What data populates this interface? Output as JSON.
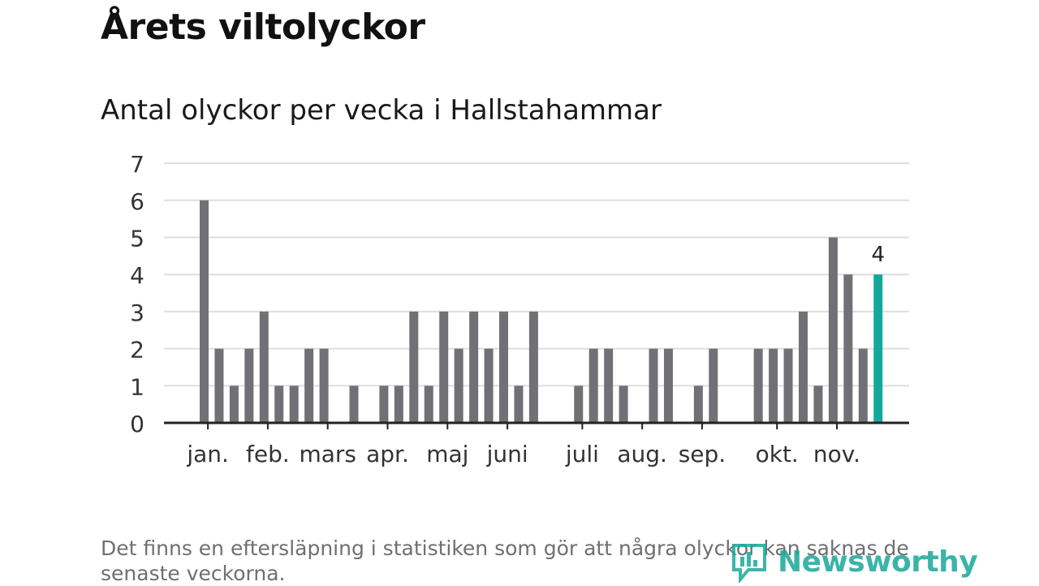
{
  "header": {
    "title": "Årets viltolyckor",
    "subtitle": "Antal olyckor per vecka i Hallstahammar"
  },
  "footer": {
    "note": "Det finns en eftersläpning i statistiken som gör att några olyckor kan saknas de senaste veckorna.",
    "brand": "Newsworthy"
  },
  "colors": {
    "bar": "#707075",
    "highlight": "#14a89c",
    "grid": "#dedede",
    "axis": "#222222"
  },
  "chart_data": {
    "type": "bar",
    "title": "Årets viltolyckor",
    "subtitle": "Antal olyckor per vecka i Hallstahammar",
    "xlabel": "",
    "ylabel": "",
    "ylim": [
      0,
      7
    ],
    "yticks": [
      "0",
      "1",
      "2",
      "3",
      "4",
      "5",
      "6",
      "7"
    ],
    "grid": true,
    "weeks": [
      1,
      2,
      3,
      4,
      5,
      6,
      7,
      8,
      9,
      10,
      11,
      12,
      13,
      14,
      15,
      16,
      17,
      18,
      19,
      20,
      21,
      22,
      23,
      24,
      25,
      26,
      27,
      28,
      29,
      30,
      31,
      32,
      33,
      34,
      35,
      36,
      37,
      38,
      39,
      40,
      41,
      42,
      43,
      44,
      45,
      46
    ],
    "values": [
      6,
      2,
      1,
      2,
      3,
      1,
      1,
      2,
      2,
      0,
      1,
      0,
      1,
      1,
      3,
      1,
      3,
      2,
      3,
      2,
      3,
      1,
      3,
      0,
      0,
      1,
      2,
      2,
      1,
      0,
      2,
      2,
      0,
      1,
      2,
      0,
      0,
      2,
      2,
      2,
      3,
      1,
      5,
      4,
      2,
      4
    ],
    "highlight_index": 45,
    "highlight_label": "4",
    "month_labels": [
      {
        "label": "jan.",
        "pos": 1.25
      },
      {
        "label": "feb.",
        "pos": 5.25
      },
      {
        "label": "mars",
        "pos": 9.25
      },
      {
        "label": "apr.",
        "pos": 13.25
      },
      {
        "label": "maj",
        "pos": 17.25
      },
      {
        "label": "juni",
        "pos": 21.25
      },
      {
        "label": "juli",
        "pos": 26.25
      },
      {
        "label": "aug.",
        "pos": 30.25
      },
      {
        "label": "sep.",
        "pos": 34.25
      },
      {
        "label": "okt.",
        "pos": 39.25
      },
      {
        "label": "nov.",
        "pos": 43.25
      }
    ]
  }
}
